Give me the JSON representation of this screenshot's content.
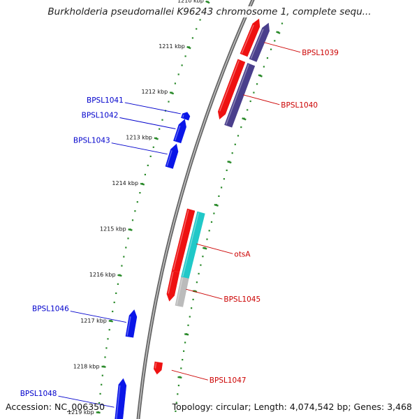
{
  "title": "Burkholderia pseudomallei K96243 chromosome 1, complete sequ...",
  "footer": {
    "accession": "Accession: NC_006350",
    "genome_info": "Topology: circular; Length: 4,074,542 bp; Genes: 3,468"
  },
  "colors": {
    "backbone": "#888888",
    "tick": "#2a8a2a",
    "forward_label": "#0000cc",
    "reverse_label": "#cc0000",
    "gene_blue": "#0a16e8",
    "gene_red": "#ee1111",
    "gene_purple": "#4a3f8c",
    "gene_cyan": "#20c8c8",
    "gene_gray": "#bbbbbb"
  },
  "ticks": [
    {
      "kbp": 1210,
      "label": "1210 kbp"
    },
    {
      "kbp": 1211,
      "label": "1211 kbp"
    },
    {
      "kbp": 1212,
      "label": "1212 kbp"
    },
    {
      "kbp": 1213,
      "label": "1213 kbp"
    },
    {
      "kbp": 1214,
      "label": "1214 kbp"
    },
    {
      "kbp": 1215,
      "label": "1215 kbp"
    },
    {
      "kbp": 1216,
      "label": "1216 kbp"
    },
    {
      "kbp": 1217,
      "label": "1217 kbp"
    },
    {
      "kbp": 1218,
      "label": "1218 kbp"
    },
    {
      "kbp": 1219,
      "label": "1219 kbp"
    }
  ],
  "genes": [
    {
      "label": "BPSL1039",
      "start": 1209.9,
      "end": 1210.72,
      "strand": "reverse",
      "lane": 1,
      "color": "gene_red",
      "arrow": "up"
    },
    {
      "label": "",
      "start": 1209.9,
      "end": 1210.75,
      "strand": "reverse",
      "lane": 2,
      "color": "gene_purple",
      "arrow": "up"
    },
    {
      "label": "BPSL1040",
      "start": 1210.85,
      "end": 1212.18,
      "strand": "reverse",
      "lane": 1,
      "color": "gene_red",
      "arrow": "down"
    },
    {
      "label": "",
      "start": 1210.85,
      "end": 1212.26,
      "strand": "reverse",
      "lane": 2,
      "color": "gene_purple",
      "arrow": "none"
    },
    {
      "label": "BPSL1041",
      "start": 1212.27,
      "end": 1212.42,
      "strand": "forward",
      "lane": 1,
      "color": "gene_blue",
      "arrow": "up"
    },
    {
      "label": "BPSL1042",
      "start": 1212.43,
      "end": 1212.93,
      "strand": "forward",
      "lane": 1,
      "color": "gene_blue",
      "arrow": "up"
    },
    {
      "label": "BPSL1043",
      "start": 1212.98,
      "end": 1213.5,
      "strand": "forward",
      "lane": 1,
      "color": "gene_blue",
      "arrow": "up"
    },
    {
      "label": "otsA",
      "start": 1214.25,
      "end": 1215.65,
      "strand": "reverse",
      "lane": 1,
      "color": "gene_red",
      "arrow": "none"
    },
    {
      "label": "",
      "start": 1214.25,
      "end": 1215.75,
      "strand": "reverse",
      "lane": 2,
      "color": "gene_cyan",
      "arrow": "none"
    },
    {
      "label": "BPSL1045",
      "start": 1215.66,
      "end": 1216.33,
      "strand": "reverse",
      "lane": 1,
      "color": "gene_red",
      "arrow": "down"
    },
    {
      "label": "",
      "start": 1215.75,
      "end": 1216.4,
      "strand": "reverse",
      "lane": 2,
      "color": "gene_gray",
      "arrow": "none"
    },
    {
      "label": "BPSL1046",
      "start": 1216.67,
      "end": 1217.27,
      "strand": "forward",
      "lane": 1,
      "color": "gene_blue",
      "arrow": "up"
    },
    {
      "label": "BPSL1047",
      "start": 1217.73,
      "end": 1218.0,
      "strand": "reverse",
      "lane": 1,
      "color": "gene_red",
      "arrow": "down"
    },
    {
      "label": "BPSL1048",
      "start": 1218.2,
      "end": 1219.5,
      "strand": "forward",
      "lane": 1,
      "color": "gene_blue",
      "arrow": "up"
    }
  ]
}
